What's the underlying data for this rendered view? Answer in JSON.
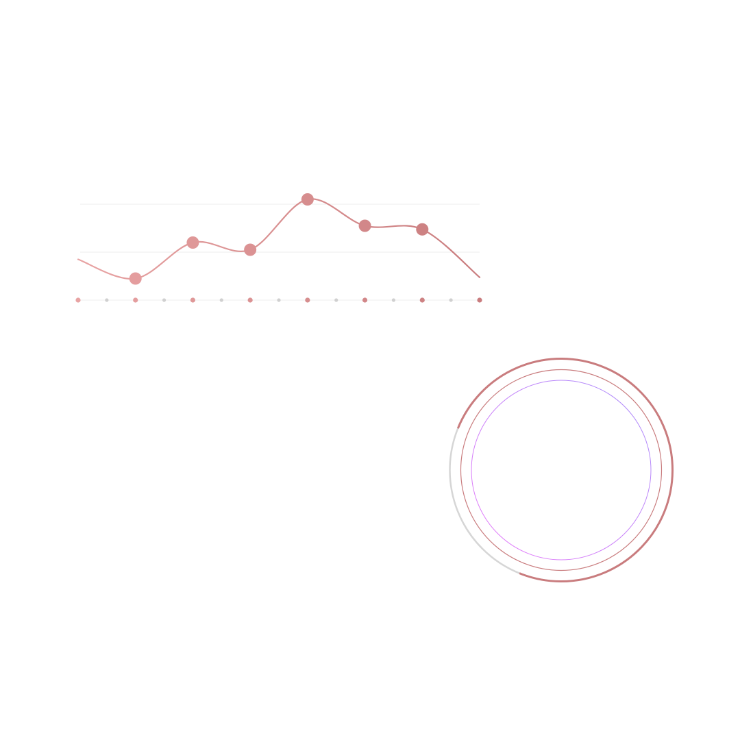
{
  "colors": {
    "background": "#ffffff",
    "gridline": "#eeeeee",
    "axis_dot_minor": "#d0d0d0",
    "line_start": "#e8a3a3",
    "line_end": "#c97c7e",
    "ring_inactive": "#d6d6d6",
    "ring_active": "#c97c7e",
    "inner_ring_start": "#a78bfa",
    "inner_ring_end": "#e879f9"
  },
  "chart_data": [
    {
      "type": "line",
      "curve": "smooth",
      "grid": "horizontal",
      "ylim": [
        0,
        4
      ],
      "x": [
        0,
        1,
        2,
        3,
        4,
        5,
        6,
        7
      ],
      "series": [
        {
          "values": [
            1.7,
            0.9,
            2.4,
            2.1,
            4.2,
            3.1,
            2.95,
            0.95
          ],
          "markers": [
            false,
            true,
            true,
            true,
            true,
            true,
            true,
            false
          ]
        }
      ],
      "x_axis_dots": 15
    },
    {
      "type": "pie",
      "style": "concentric-rings",
      "rings": [
        {
          "fraction": 0.75,
          "role": "outer-progress"
        },
        {
          "fraction": 1.0,
          "role": "middle-ring"
        },
        {
          "fraction": 1.0,
          "role": "inner-ring"
        }
      ]
    }
  ]
}
